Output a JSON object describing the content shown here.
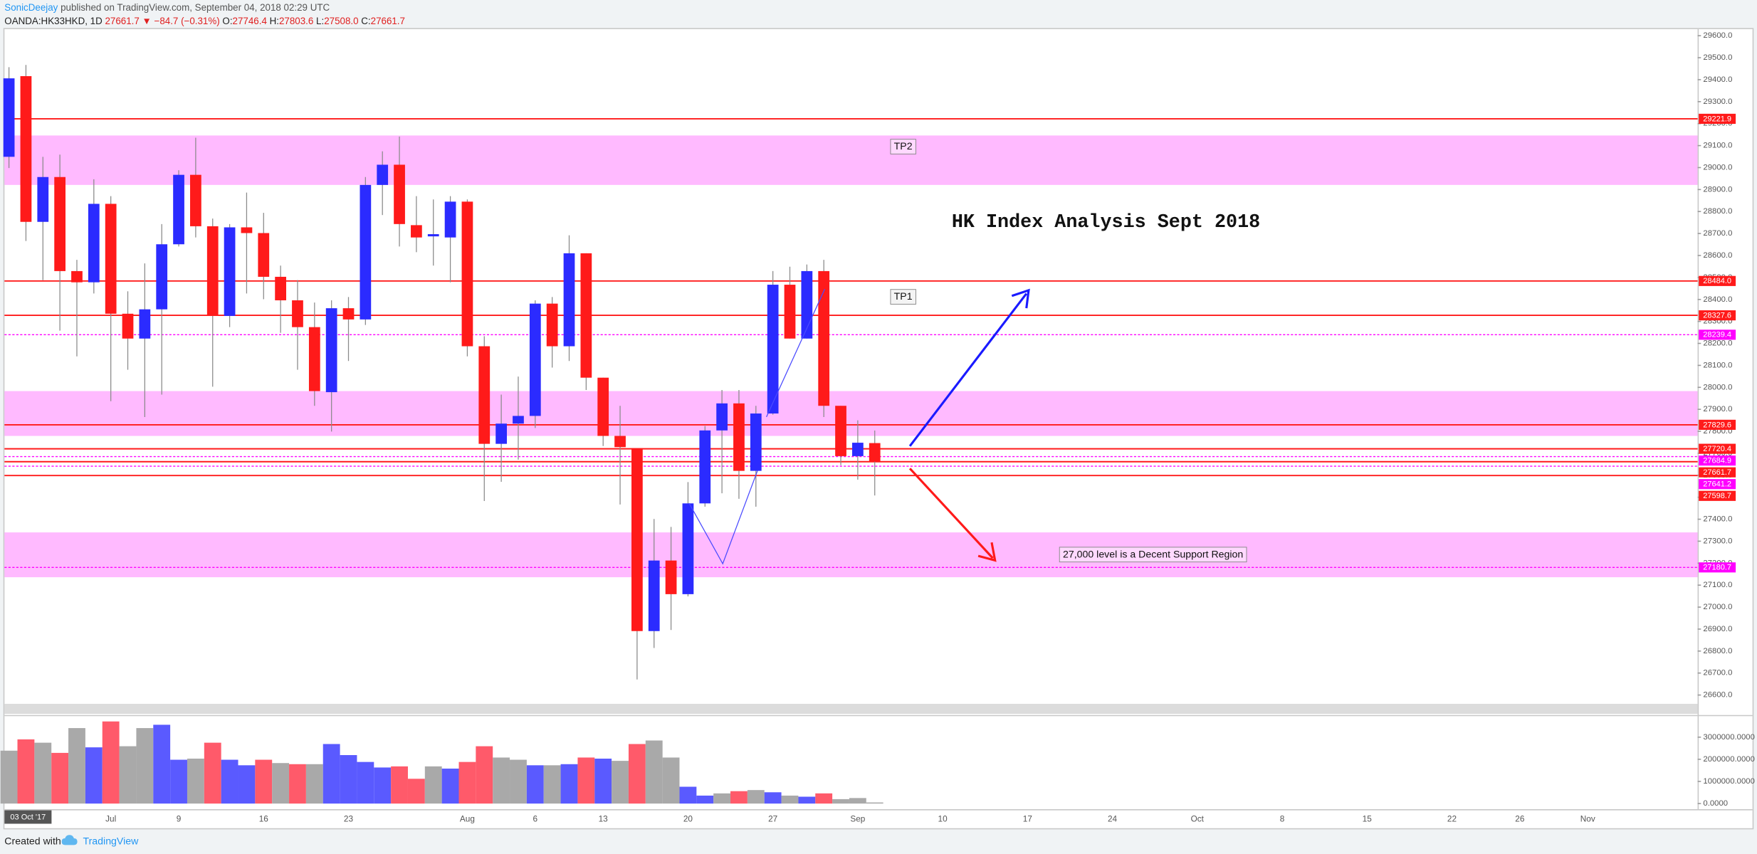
{
  "header": {
    "author": "SonicDeejay",
    "published": "published on TradingView.com, September 04, 2018 02:29 UTC",
    "symbol": "OANDA:HK33HKD, 1D",
    "last": "27661.7",
    "arrow": "▼",
    "change": "−84.7 (−0.31%)",
    "ohlc": [
      {
        "key": "O:",
        "value": "27746.4"
      },
      {
        "key": "H:",
        "value": "27803.6"
      },
      {
        "key": "L:",
        "value": "27508.0"
      },
      {
        "key": "C:",
        "value": "27661.7"
      }
    ]
  },
  "chart_data": {
    "type": "candlestick",
    "title": "HK Index Analysis Sept 2018",
    "categories": [
      null,
      null,
      null,
      null,
      null,
      null,
      "Jul",
      null,
      null,
      null,
      "9",
      null,
      null,
      null,
      null,
      "16",
      null,
      null,
      null,
      null,
      "23",
      null,
      null,
      null,
      null,
      null,
      null,
      "Aug",
      null,
      null,
      null,
      "6",
      null,
      null,
      null,
      "13",
      null,
      null,
      null,
      null,
      "20",
      null,
      null,
      null,
      null,
      "27",
      null,
      null,
      null,
      null,
      "Sep",
      null,
      null,
      null,
      null,
      "10",
      null,
      null,
      null,
      null,
      "17",
      null,
      null,
      null,
      null,
      "24",
      null,
      null,
      null,
      null,
      "Oct",
      null,
      null,
      null,
      null,
      "8",
      null,
      null,
      null,
      null,
      "15",
      null,
      null,
      null,
      null,
      "22",
      null,
      null,
      null,
      "26",
      null,
      null,
      null,
      "Nov",
      null,
      null,
      null,
      null,
      null
    ],
    "up_color": "#2b2bff",
    "down_color": "#ff1a1a",
    "wick_color": "#8a8a8a",
    "candles": [
      {
        "open": 29049,
        "high": 29457,
        "low": 28998,
        "close": 29406
      },
      {
        "open": 29416,
        "high": 29467,
        "low": 28666,
        "close": 28753
      },
      {
        "open": 28753,
        "high": 29049,
        "low": 28488,
        "close": 28957
      },
      {
        "open": 28957,
        "high": 29059,
        "low": 28258,
        "close": 28529
      },
      {
        "open": 28529,
        "high": 28580,
        "low": 28141,
        "close": 28478
      },
      {
        "open": 28478,
        "high": 28947,
        "low": 28427,
        "close": 28835
      },
      {
        "open": 28835,
        "high": 28870,
        "low": 27937,
        "close": 28335
      },
      {
        "open": 28335,
        "high": 28437,
        "low": 28080,
        "close": 28222
      },
      {
        "open": 28222,
        "high": 28564,
        "low": 27865,
        "close": 28355
      },
      {
        "open": 28355,
        "high": 28743,
        "low": 27967,
        "close": 28651
      },
      {
        "open": 28651,
        "high": 28988,
        "low": 28641,
        "close": 28967
      },
      {
        "open": 28967,
        "high": 29136,
        "low": 28682,
        "close": 28733
      },
      {
        "open": 28733,
        "high": 28768,
        "low": 28003,
        "close": 28325
      },
      {
        "open": 28325,
        "high": 28743,
        "low": 28274,
        "close": 28728
      },
      {
        "open": 28728,
        "high": 28886,
        "low": 28427,
        "close": 28702
      },
      {
        "open": 28702,
        "high": 28794,
        "low": 28401,
        "close": 28503
      },
      {
        "open": 28503,
        "high": 28554,
        "low": 28248,
        "close": 28396
      },
      {
        "open": 28396,
        "high": 28488,
        "low": 28080,
        "close": 28274
      },
      {
        "open": 28274,
        "high": 28386,
        "low": 27916,
        "close": 27983
      },
      {
        "open": 27978,
        "high": 28396,
        "low": 27799,
        "close": 28360
      },
      {
        "open": 28360,
        "high": 28411,
        "low": 28120,
        "close": 28309
      },
      {
        "open": 28309,
        "high": 28957,
        "low": 28284,
        "close": 28921
      },
      {
        "open": 28921,
        "high": 29074,
        "low": 28784,
        "close": 29013
      },
      {
        "open": 29013,
        "high": 29141,
        "low": 28641,
        "close": 28743
      },
      {
        "open": 28738,
        "high": 28870,
        "low": 28615,
        "close": 28682
      },
      {
        "open": 28687,
        "high": 28855,
        "low": 28554,
        "close": 28697
      },
      {
        "open": 28682,
        "high": 28870,
        "low": 28478,
        "close": 28845
      },
      {
        "open": 28845,
        "high": 28855,
        "low": 28141,
        "close": 28187
      },
      {
        "open": 28187,
        "high": 28233,
        "low": 27483,
        "close": 27743
      },
      {
        "open": 27743,
        "high": 27967,
        "low": 27570,
        "close": 27835
      },
      {
        "open": 27835,
        "high": 28049,
        "low": 27671,
        "close": 27870
      },
      {
        "open": 27870,
        "high": 28396,
        "low": 27815,
        "close": 28381
      },
      {
        "open": 28381,
        "high": 28411,
        "low": 28090,
        "close": 28187
      },
      {
        "open": 28187,
        "high": 28692,
        "low": 28120,
        "close": 28610
      },
      {
        "open": 28610,
        "high": 28610,
        "low": 27988,
        "close": 28044
      },
      {
        "open": 28044,
        "high": 28044,
        "low": 27733,
        "close": 27779
      },
      {
        "open": 27779,
        "high": 27916,
        "low": 27467,
        "close": 27728
      },
      {
        "open": 27723,
        "high": 27723,
        "low": 26671,
        "close": 26891
      },
      {
        "open": 26891,
        "high": 27401,
        "low": 26814,
        "close": 27212
      },
      {
        "open": 27212,
        "high": 27365,
        "low": 26896,
        "close": 27059
      },
      {
        "open": 27059,
        "high": 27569,
        "low": 27049,
        "close": 27472
      },
      {
        "open": 27472,
        "high": 27824,
        "low": 27457,
        "close": 27804
      },
      {
        "open": 27804,
        "high": 27988,
        "low": 27518,
        "close": 27927
      },
      {
        "open": 27927,
        "high": 27988,
        "low": 27493,
        "close": 27620
      },
      {
        "open": 27620,
        "high": 27916,
        "low": 27457,
        "close": 27881
      },
      {
        "open": 27881,
        "high": 28529,
        "low": 27876,
        "close": 28467
      },
      {
        "open": 28467,
        "high": 28549,
        "low": 28222,
        "close": 28222
      },
      {
        "open": 28222,
        "high": 28559,
        "low": 28222,
        "close": 28529
      },
      {
        "open": 28529,
        "high": 28580,
        "low": 27865,
        "close": 27916
      },
      {
        "open": 27916,
        "high": 27916,
        "low": 27646,
        "close": 27687
      },
      {
        "open": 27687,
        "high": 27850,
        "low": 27580,
        "close": 27748
      },
      {
        "open": 27746.4,
        "high": 27803.6,
        "low": 27508.0,
        "close": 27661.7
      }
    ],
    "ylim": [
      26560,
      29635
    ],
    "yticks": [
      {
        "value": 26600,
        "label": "26600.0"
      },
      {
        "value": 26700,
        "label": "26700.0"
      },
      {
        "value": 26800,
        "label": "26800.0"
      },
      {
        "value": 26900,
        "label": "26900.0"
      },
      {
        "value": 27000,
        "label": "27000.0"
      },
      {
        "value": 27100,
        "label": "27100.0"
      },
      {
        "value": 27200,
        "label": "27200.0"
      },
      {
        "value": 27300,
        "label": "27300.0"
      },
      {
        "value": 27400,
        "label": "27400.0"
      },
      {
        "value": 27500,
        "label": "27500.0"
      },
      {
        "value": 27600,
        "label": "27600.0"
      },
      {
        "value": 27700,
        "label": "27700.0"
      },
      {
        "value": 27800,
        "label": "27800.0"
      },
      {
        "value": 27900,
        "label": "27900.0"
      },
      {
        "value": 28000,
        "label": "28000.0"
      },
      {
        "value": 28100,
        "label": "28100.0"
      },
      {
        "value": 28200,
        "label": "28200.0"
      },
      {
        "value": 28300,
        "label": "28300.0"
      },
      {
        "value": 28400,
        "label": "28400.0"
      },
      {
        "value": 28500,
        "label": "28500.0"
      },
      {
        "value": 28600,
        "label": "28600.0"
      },
      {
        "value": 28700,
        "label": "28700.0"
      },
      {
        "value": 28800,
        "label": "28800.0"
      },
      {
        "value": 28900,
        "label": "28900.0"
      },
      {
        "value": 29000,
        "label": "29000.0"
      },
      {
        "value": 29100,
        "label": "29100.0"
      },
      {
        "value": 29200,
        "label": "29200.0"
      },
      {
        "value": 29300,
        "label": "29300.0"
      },
      {
        "value": 29400,
        "label": "29400.0"
      },
      {
        "value": 29500,
        "label": "29500.0"
      },
      {
        "value": 29600,
        "label": "29600.0"
      }
    ],
    "volume": {
      "values": [
        2390000,
        2900000,
        2750000,
        2290000,
        3410000,
        2540000,
        3710000,
        2590000,
        3410000,
        3560000,
        1980000,
        2030000,
        2750000,
        1980000,
        1730000,
        1980000,
        1830000,
        1780000,
        1780000,
        2690000,
        2190000,
        1880000,
        1630000,
        1680000,
        1120000,
        1680000,
        1580000,
        1880000,
        2590000,
        2080000,
        1980000,
        1730000,
        1730000,
        1780000,
        2080000,
        2030000,
        1930000,
        2690000,
        2850000,
        2080000,
        760000,
        360000,
        460000,
        560000,
        610000,
        510000,
        360000,
        310000,
        460000,
        200000,
        250000,
        50000
      ],
      "colors": [
        "#a9a9a9",
        "#ff5a6a",
        "#a9a9a9",
        "#ff5a6a",
        "#a9a9a9",
        "#5a5aff",
        "#ff5a6a",
        "#a9a9a9",
        "#a9a9a9",
        "#5a5aff",
        "#5a5aff",
        "#a9a9a9",
        "#ff5a6a",
        "#5a5aff",
        "#5a5aff",
        "#ff5a6a",
        "#a9a9a9",
        "#ff5a6a",
        "#a9a9a9",
        "#5a5aff",
        "#5a5aff",
        "#5a5aff",
        "#5a5aff",
        "#ff5a6a",
        "#ff5a6a",
        "#a9a9a9",
        "#5a5aff",
        "#ff5a6a",
        "#ff5a6a",
        "#a9a9a9",
        "#a9a9a9",
        "#5a5aff",
        "#a9a9a9",
        "#5a5aff",
        "#ff5a6a",
        "#5a5aff",
        "#a9a9a9",
        "#ff5a6a",
        "#a9a9a9",
        "#a9a9a9",
        "#5a5aff",
        "#5a5aff",
        "#a9a9a9",
        "#ff5a6a",
        "#a9a9a9",
        "#5a5aff",
        "#a9a9a9",
        "#5a5aff",
        "#ff5a6a",
        "#a9a9a9",
        "#a9a9a9",
        "#a9a9a9"
      ],
      "ylim": [
        0,
        4000000
      ],
      "yticks": [
        {
          "value": 0,
          "label": "0.0000"
        },
        {
          "value": 1000000,
          "label": "1000000.0000"
        },
        {
          "value": 2000000,
          "label": "2000000.0000"
        },
        {
          "value": 3000000,
          "label": "3000000.0000"
        }
      ]
    },
    "levels": [
      {
        "value": 29221.9,
        "label": "29221.9",
        "color": "#ff1a1a",
        "style": "solid"
      },
      {
        "value": 28484.0,
        "label": "28484.0",
        "color": "#ff1a1a",
        "style": "solid"
      },
      {
        "value": 28327.6,
        "label": "28327.6",
        "color": "#ff1a1a",
        "style": "solid"
      },
      {
        "value": 28239.4,
        "label": "28239.4",
        "color": "#ff00ff",
        "style": "dotted"
      },
      {
        "value": 27829.6,
        "label": "27829.6",
        "color": "#ff1a1a",
        "style": "solid"
      },
      {
        "value": 27720.4,
        "label": "27720.4",
        "color": "#ff1a1a",
        "style": "solid"
      },
      {
        "value": 27684.9,
        "label": "27684.9",
        "color": "#ff00ff",
        "style": "dotted"
      },
      {
        "value": 27661.7,
        "label": "27661.7",
        "color": "#ff1a1a",
        "style": "solid"
      },
      {
        "value": 27641.2,
        "label": "27641.2",
        "color": "#ff00ff",
        "style": "dotted"
      },
      {
        "value": 27598.7,
        "label": "27598.7",
        "color": "#ff1a1a",
        "style": "solid"
      },
      {
        "value": 27180.7,
        "label": "27180.7",
        "color": "#ff00ff",
        "style": "dotted"
      }
    ],
    "zone_color": "#ffb6ff",
    "zones": [
      {
        "from": 28921,
        "to": 29146
      },
      {
        "from": 27779,
        "to": 27983
      },
      {
        "from": 27136,
        "to": 27340
      }
    ],
    "annotations": [
      "TP2",
      "TP1",
      "27,000 level is a Decent Support Region"
    ],
    "date_badge": "03 Oct '17"
  },
  "footer": {
    "created": "Created with",
    "brand": "TradingView"
  }
}
